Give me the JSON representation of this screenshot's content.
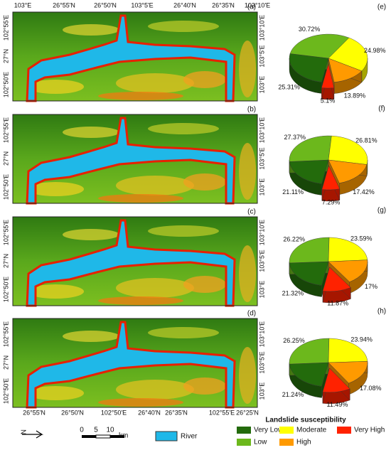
{
  "maps": [
    {
      "label": "(a)",
      "left_labels": [
        "102°55'E",
        "27°N",
        "102°50'E"
      ],
      "right_labels": [
        "103°10'E",
        "103°5'E",
        "103°E"
      ]
    },
    {
      "label": "(b)",
      "left_labels": [
        "102°55'E",
        "27°N",
        "102°50'E"
      ],
      "right_labels": [
        "103°10'E",
        "103°5'E",
        "103°E"
      ]
    },
    {
      "label": "(c)",
      "left_labels": [
        "102°55'E",
        "27°N",
        "102°50'E"
      ],
      "right_labels": [
        "103°10'E",
        "103°5'E",
        "103°E"
      ]
    },
    {
      "label": "(d)",
      "left_labels": [
        "102°55'E",
        "27°N",
        "102°50'E"
      ],
      "right_labels": [
        "103°10'E",
        "103°5'E",
        "103°E"
      ]
    }
  ],
  "top_labels": [
    "103°E",
    "26°55'N",
    "26°50'N",
    "103°5'E",
    "26°40'N",
    "26°35'N",
    "103°10'E"
  ],
  "bottom_labels": [
    "26°55'N",
    "26°50'N",
    "102°50'E",
    "26°40'N",
    "26°35'N",
    "102°55'E",
    "26°25'N"
  ],
  "north_label": "N",
  "scale_bar": {
    "labels": [
      "0",
      "5",
      "10"
    ],
    "unit": "km"
  },
  "river_label": "River",
  "legend_title": "Landslide susceptibility",
  "chart_data": [
    {
      "type": "pie",
      "title": "(e)",
      "categories": [
        "Very Low",
        "Low",
        "Moderate",
        "High",
        "Very High"
      ],
      "colors": [
        "#236b0c",
        "#6cb81c",
        "#ffff00",
        "#ff9a00",
        "#ff2200"
      ],
      "values": [
        25.31,
        30.72,
        24.98,
        13.89,
        5.1
      ],
      "value_labels": [
        "25.31%",
        "30.72%",
        "24.98%",
        "13.89%",
        "5.1%"
      ]
    },
    {
      "type": "pie",
      "title": "(f)",
      "categories": [
        "Very Low",
        "Low",
        "Moderate",
        "High",
        "Very High"
      ],
      "colors": [
        "#236b0c",
        "#6cb81c",
        "#ffff00",
        "#ff9a00",
        "#ff2200"
      ],
      "values": [
        21.11,
        27.37,
        26.81,
        17.42,
        7.29
      ],
      "value_labels": [
        "21.11%",
        "27.37%",
        "26.81%",
        "17.42%",
        "7.29%"
      ]
    },
    {
      "type": "pie",
      "title": "(g)",
      "categories": [
        "Very Low",
        "Low",
        "Moderate",
        "High",
        "Very High"
      ],
      "colors": [
        "#236b0c",
        "#6cb81c",
        "#ffff00",
        "#ff9a00",
        "#ff2200"
      ],
      "values": [
        21.32,
        26.22,
        23.59,
        17,
        11.87
      ],
      "value_labels": [
        "21.32%",
        "26.22%",
        "23.59%",
        "17%",
        "11.87%"
      ]
    },
    {
      "type": "pie",
      "title": "(h)",
      "categories": [
        "Very Low",
        "Low",
        "Moderate",
        "High",
        "Very High"
      ],
      "colors": [
        "#236b0c",
        "#6cb81c",
        "#ffff00",
        "#ff9a00",
        "#ff2200"
      ],
      "values": [
        21.24,
        26.25,
        23.94,
        17.08,
        11.49
      ],
      "value_labels": [
        "21.24%",
        "26.25%",
        "23.94%",
        "17.08%",
        "11.49%"
      ]
    }
  ]
}
